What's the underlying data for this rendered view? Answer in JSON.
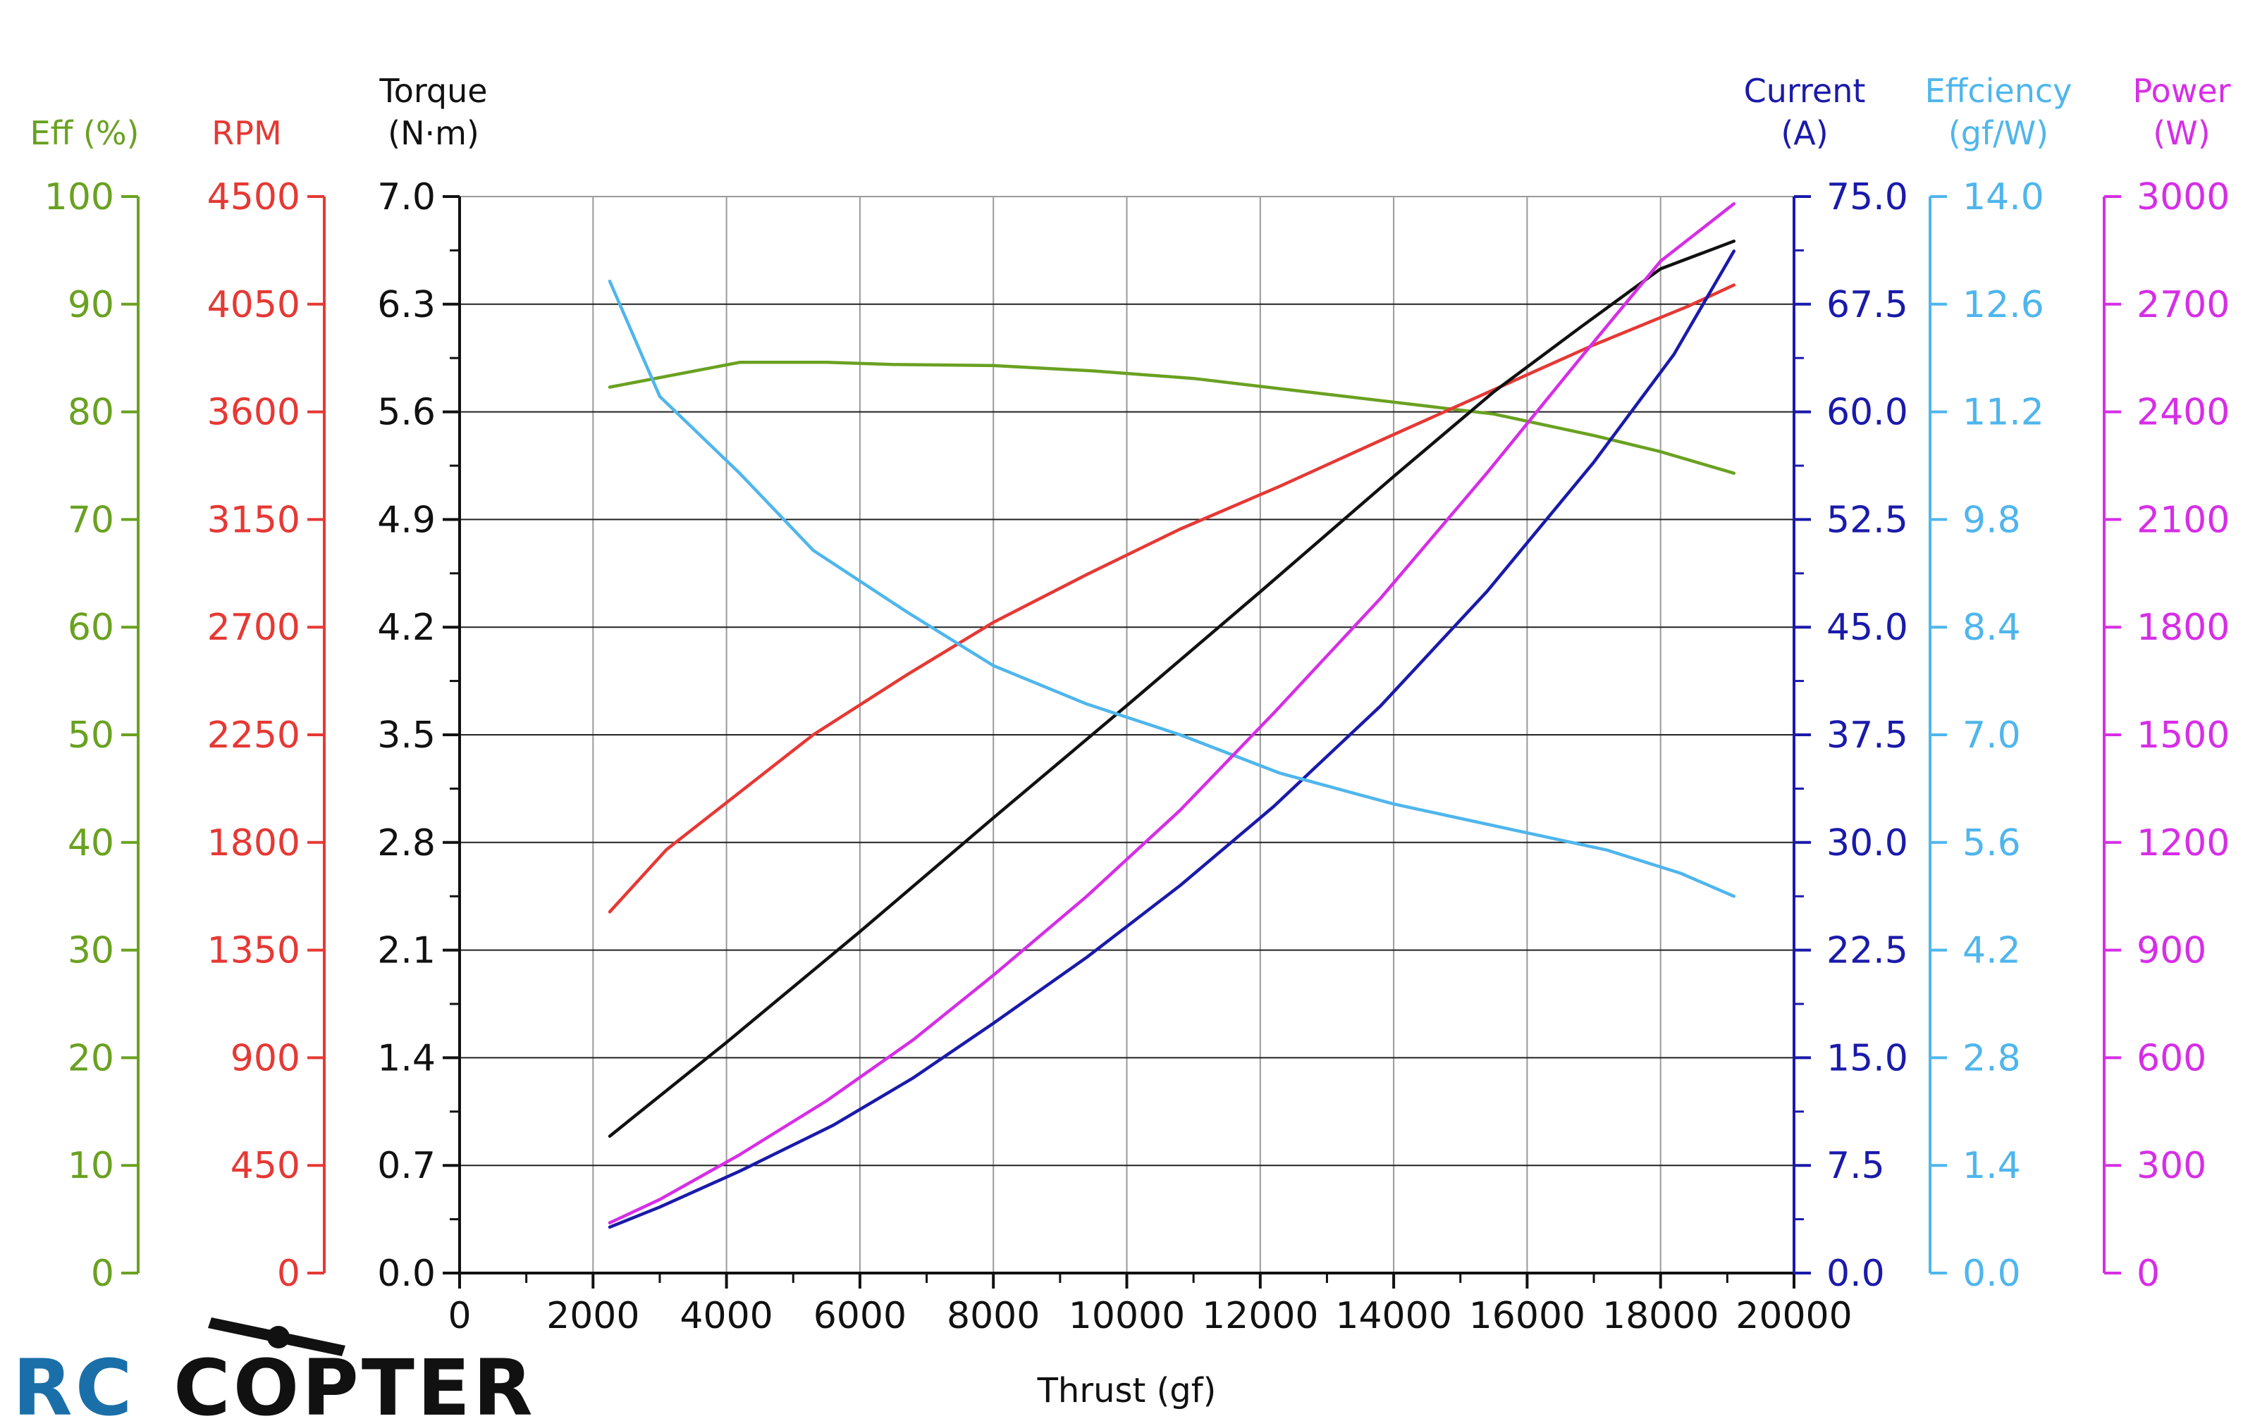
{
  "chart_data": {
    "type": "line",
    "xlabel": "Thrust (gf)",
    "xlim": [
      0,
      20000
    ],
    "x_ticks": [
      0,
      2000,
      4000,
      6000,
      8000,
      10000,
      12000,
      14000,
      16000,
      18000,
      20000
    ],
    "grid": true,
    "axes": [
      {
        "id": "eff_pct",
        "side": "left",
        "title": [
          "Eff (%)"
        ],
        "color": "#6aa121",
        "ylim": [
          0,
          100
        ],
        "ticks": [
          0,
          10,
          20,
          30,
          40,
          50,
          60,
          70,
          80,
          90,
          100
        ],
        "tick_labels": [
          "0",
          "10",
          "20",
          "30",
          "40",
          "50",
          "60",
          "70",
          "80",
          "90",
          "100"
        ]
      },
      {
        "id": "rpm",
        "side": "left",
        "title": [
          "RPM"
        ],
        "color": "#e53935",
        "ylim": [
          0,
          4500
        ],
        "ticks": [
          0,
          450,
          900,
          1350,
          1800,
          2250,
          2700,
          3150,
          3600,
          4050,
          4500
        ],
        "tick_labels": [
          "0",
          "450",
          "900",
          "1350",
          "1800",
          "2250",
          "2700",
          "3150",
          "3600",
          "4050",
          "4500"
        ]
      },
      {
        "id": "torque",
        "side": "left",
        "title": [
          "Torque",
          "(N·m)"
        ],
        "color": "#111111",
        "ylim": [
          0,
          7
        ],
        "ticks": [
          0,
          0.7,
          1.4,
          2.1,
          2.8,
          3.5,
          4.2,
          4.9,
          5.6,
          6.3,
          7.0
        ],
        "tick_labels": [
          "0.0",
          "0.7",
          "1.4",
          "2.1",
          "2.8",
          "3.5",
          "4.2",
          "4.9",
          "5.6",
          "6.3",
          "7.0"
        ]
      },
      {
        "id": "current",
        "side": "right",
        "title": [
          "Current",
          "(A)"
        ],
        "color": "#1a1aaa",
        "ylim": [
          0,
          75
        ],
        "ticks": [
          0,
          7.5,
          15,
          22.5,
          30,
          37.5,
          45,
          52.5,
          60,
          67.5,
          75
        ],
        "tick_labels": [
          "0.0",
          "7.5",
          "15.0",
          "22.5",
          "30.0",
          "37.5",
          "45.0",
          "52.5",
          "60.0",
          "67.5",
          "75.0"
        ]
      },
      {
        "id": "eff_gfw",
        "side": "right",
        "title": [
          "Effciency",
          "(gf/W)"
        ],
        "color": "#4fb6ec",
        "ylim": [
          0,
          14
        ],
        "ticks": [
          0,
          1.4,
          2.8,
          4.2,
          5.6,
          7.0,
          8.4,
          9.8,
          11.2,
          12.6,
          14.0
        ],
        "tick_labels": [
          "0.0",
          "1.4",
          "2.8",
          "4.2",
          "5.6",
          "7.0",
          "8.4",
          "9.8",
          "11.2",
          "12.6",
          "14.0"
        ]
      },
      {
        "id": "power",
        "side": "right",
        "title": [
          "Power",
          "(W)"
        ],
        "color": "#d62ee6",
        "ylim": [
          0,
          3000
        ],
        "ticks": [
          0,
          300,
          600,
          900,
          1200,
          1500,
          1800,
          2100,
          2400,
          2700,
          3000
        ],
        "tick_labels": [
          "0",
          "300",
          "600",
          "900",
          "1200",
          "1500",
          "1800",
          "2100",
          "2400",
          "2700",
          "3000"
        ]
      }
    ],
    "series": [
      {
        "axis": "eff_pct",
        "color": "#6aa121",
        "x": [
          2250,
          4200,
          5500,
          6500,
          8000,
          9500,
          11000,
          12500,
          14000,
          15500,
          17000,
          18000,
          19100
        ],
        "y": [
          82.3,
          84.6,
          84.6,
          84.4,
          84.3,
          83.8,
          83.1,
          82.0,
          80.9,
          79.8,
          77.8,
          76.3,
          74.3
        ]
      },
      {
        "axis": "rpm",
        "color": "#e53935",
        "x": [
          2250,
          3100,
          4200,
          5300,
          6700,
          8000,
          9400,
          10800,
          12300,
          13800,
          15400,
          17000,
          18400,
          19100
        ],
        "y": [
          1510,
          1770,
          2010,
          2250,
          2500,
          2720,
          2920,
          3110,
          3290,
          3480,
          3680,
          3880,
          4040,
          4130
        ]
      },
      {
        "axis": "torque",
        "color": "#111111",
        "x": [
          2250,
          4000,
          6000,
          8000,
          10000,
          12000,
          14000,
          15500,
          16800,
          18000,
          19100
        ],
        "y": [
          0.89,
          1.5,
          2.22,
          2.96,
          3.69,
          4.43,
          5.18,
          5.73,
          6.15,
          6.53,
          6.71
        ]
      },
      {
        "axis": "current",
        "color": "#1a1aaa",
        "x": [
          2250,
          3000,
          4200,
          5600,
          6800,
          8000,
          9400,
          10800,
          12200,
          13800,
          15400,
          17000,
          18200,
          19100
        ],
        "y": [
          3.2,
          4.6,
          7.1,
          10.3,
          13.6,
          17.4,
          22.0,
          27.0,
          32.5,
          39.5,
          47.5,
          56.5,
          64.0,
          71.2
        ]
      },
      {
        "axis": "eff_gfw",
        "color": "#4fb6ec",
        "x": [
          2250,
          3000,
          4200,
          5300,
          6700,
          8000,
          9400,
          10800,
          12300,
          14000,
          15600,
          17200,
          18300,
          19100
        ],
        "y": [
          12.9,
          11.4,
          10.4,
          9.4,
          8.6,
          7.9,
          7.4,
          7.0,
          6.5,
          6.1,
          5.8,
          5.5,
          5.2,
          4.9
        ]
      },
      {
        "axis": "power",
        "color": "#d62ee6",
        "x": [
          2250,
          3000,
          4200,
          5500,
          6800,
          8000,
          9400,
          10800,
          12200,
          13800,
          15400,
          16800,
          18000,
          19100
        ],
        "y": [
          140,
          205,
          330,
          480,
          650,
          830,
          1050,
          1290,
          1560,
          1880,
          2230,
          2550,
          2820,
          2980
        ]
      }
    ]
  },
  "logo": {
    "part1": "RC",
    "part2": "COPTER",
    "color1": "#1a6fa8",
    "color2": "#111111"
  }
}
